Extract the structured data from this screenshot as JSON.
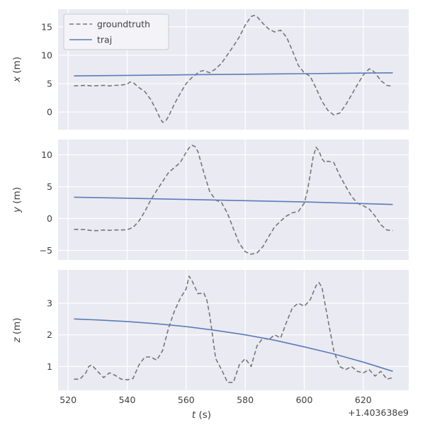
{
  "style": {
    "figure_bg": "#ffffff",
    "axes_bg": "#eaeaf2",
    "grid_color": "#ffffff",
    "text_color": "#404040",
    "groundtruth_color": "#767676",
    "traj_color": "#5b7cb8",
    "legend_bg": "#f3f3f8",
    "legend_border": "#cccccc"
  },
  "legend": {
    "entries": [
      {
        "label": "groundtruth",
        "color_key": "groundtruth_color",
        "dash": true
      },
      {
        "label": "traj",
        "color_key": "traj_color",
        "dash": false
      }
    ]
  },
  "xaxis": {
    "label_var": "t",
    "label_unit": "(s)",
    "ticks": [
      520,
      540,
      560,
      580,
      600,
      620
    ],
    "lim": [
      516.6,
      635.4
    ],
    "offset_text": "+1.403638e9"
  },
  "chart_data": [
    {
      "type": "line",
      "ylabel_var": "x",
      "ylabel_unit": "(m)",
      "yticks": [
        0,
        5,
        10,
        15
      ],
      "ylim": [
        -3.1,
        18.1
      ],
      "series": [
        {
          "name": "groundtruth",
          "color_key": "groundtruth_color",
          "dash": true,
          "points": [
            [
              522,
              4.6
            ],
            [
              524,
              4.65
            ],
            [
              526,
              4.7
            ],
            [
              528,
              4.6
            ],
            [
              530,
              4.65
            ],
            [
              532,
              4.7
            ],
            [
              534,
              4.6
            ],
            [
              536,
              4.7
            ],
            [
              538,
              4.75
            ],
            [
              540,
              4.9
            ],
            [
              541,
              5.3
            ],
            [
              542,
              5.2
            ],
            [
              544,
              4.3
            ],
            [
              546,
              3.6
            ],
            [
              548,
              2.2
            ],
            [
              550,
              0.2
            ],
            [
              551,
              -0.9
            ],
            [
              552,
              -1.8
            ],
            [
              553,
              -1.6
            ],
            [
              554,
              -0.8
            ],
            [
              556,
              1.4
            ],
            [
              558,
              3.3
            ],
            [
              560,
              5.0
            ],
            [
              562,
              6.1
            ],
            [
              564,
              6.9
            ],
            [
              565,
              7.2
            ],
            [
              566,
              7.3
            ],
            [
              568,
              6.9
            ],
            [
              570,
              7.6
            ],
            [
              572,
              8.6
            ],
            [
              574,
              10.1
            ],
            [
              576,
              11.6
            ],
            [
              578,
              13.2
            ],
            [
              580,
              15.3
            ],
            [
              582,
              16.8
            ],
            [
              583,
              17.0
            ],
            [
              584,
              16.8
            ],
            [
              586,
              15.6
            ],
            [
              588,
              14.6
            ],
            [
              590,
              14.1
            ],
            [
              592,
              14.4
            ],
            [
              594,
              13.2
            ],
            [
              596,
              10.8
            ],
            [
              598,
              8.2
            ],
            [
              600,
              6.9
            ],
            [
              602,
              6.3
            ],
            [
              604,
              4.2
            ],
            [
              606,
              1.9
            ],
            [
              608,
              0.3
            ],
            [
              610,
              -0.5
            ],
            [
              612,
              -0.2
            ],
            [
              614,
              1.2
            ],
            [
              616,
              3.0
            ],
            [
              618,
              4.8
            ],
            [
              620,
              6.5
            ],
            [
              622,
              7.6
            ],
            [
              623,
              7.4
            ],
            [
              624,
              6.9
            ],
            [
              626,
              5.5
            ],
            [
              628,
              4.7
            ],
            [
              630,
              4.5
            ]
          ]
        },
        {
          "name": "traj",
          "color_key": "traj_color",
          "dash": false,
          "points": [
            [
              522,
              6.35
            ],
            [
              540,
              6.45
            ],
            [
              560,
              6.55
            ],
            [
              580,
              6.65
            ],
            [
              600,
              6.75
            ],
            [
              620,
              6.85
            ],
            [
              630,
              6.9
            ]
          ]
        }
      ]
    },
    {
      "type": "line",
      "ylabel_var": "y",
      "ylabel_unit": "(m)",
      "yticks": [
        -5,
        0,
        5,
        10
      ],
      "ylim": [
        -6.5,
        12.4
      ],
      "series": [
        {
          "name": "groundtruth",
          "color_key": "groundtruth_color",
          "dash": true,
          "points": [
            [
              522,
              -1.7
            ],
            [
              524,
              -1.7
            ],
            [
              526,
              -1.75
            ],
            [
              528,
              -1.9
            ],
            [
              530,
              -1.9
            ],
            [
              532,
              -1.8
            ],
            [
              534,
              -1.85
            ],
            [
              536,
              -1.8
            ],
            [
              538,
              -1.8
            ],
            [
              540,
              -1.75
            ],
            [
              542,
              -1.4
            ],
            [
              544,
              -0.4
            ],
            [
              546,
              1.1
            ],
            [
              548,
              2.9
            ],
            [
              550,
              4.4
            ],
            [
              552,
              5.8
            ],
            [
              554,
              7.2
            ],
            [
              556,
              8.0
            ],
            [
              558,
              8.8
            ],
            [
              560,
              10.4
            ],
            [
              561,
              11.1
            ],
            [
              562,
              11.5
            ],
            [
              563,
              11.3
            ],
            [
              564,
              10.5
            ],
            [
              566,
              7.2
            ],
            [
              568,
              4.2
            ],
            [
              570,
              2.9
            ],
            [
              572,
              2.5
            ],
            [
              574,
              0.8
            ],
            [
              576,
              -1.6
            ],
            [
              578,
              -3.9
            ],
            [
              580,
              -5.2
            ],
            [
              582,
              -5.6
            ],
            [
              584,
              -5.4
            ],
            [
              586,
              -4.4
            ],
            [
              588,
              -2.8
            ],
            [
              590,
              -1.3
            ],
            [
              592,
              -0.4
            ],
            [
              594,
              0.4
            ],
            [
              596,
              0.9
            ],
            [
              598,
              1.1
            ],
            [
              600,
              2.4
            ],
            [
              601,
              4.2
            ],
            [
              602,
              6.8
            ],
            [
              603,
              9.6
            ],
            [
              604,
              11.2
            ],
            [
              605,
              10.6
            ],
            [
              606,
              9.4
            ],
            [
              607,
              8.8
            ],
            [
              608,
              9.0
            ],
            [
              610,
              8.8
            ],
            [
              612,
              6.8
            ],
            [
              614,
              5.1
            ],
            [
              616,
              3.5
            ],
            [
              618,
              2.4
            ],
            [
              620,
              2.0
            ],
            [
              622,
              1.5
            ],
            [
              624,
              0.4
            ],
            [
              626,
              -1.0
            ],
            [
              628,
              -1.8
            ],
            [
              630,
              -1.9
            ]
          ]
        },
        {
          "name": "traj",
          "color_key": "traj_color",
          "dash": false,
          "points": [
            [
              522,
              3.35
            ],
            [
              540,
              3.2
            ],
            [
              560,
              3.0
            ],
            [
              580,
              2.8
            ],
            [
              600,
              2.6
            ],
            [
              620,
              2.35
            ],
            [
              630,
              2.2
            ]
          ]
        }
      ]
    },
    {
      "type": "line",
      "ylabel_var": "z",
      "ylabel_unit": "(m)",
      "yticks": [
        1,
        2,
        3
      ],
      "ylim": [
        0.25,
        4.05
      ],
      "series": [
        {
          "name": "groundtruth",
          "color_key": "groundtruth_color",
          "dash": true,
          "points": [
            [
              522,
              0.6
            ],
            [
              524,
              0.6
            ],
            [
              526,
              0.8
            ],
            [
              527,
              1.0
            ],
            [
              528,
              1.05
            ],
            [
              530,
              0.85
            ],
            [
              532,
              0.65
            ],
            [
              534,
              0.8
            ],
            [
              536,
              0.72
            ],
            [
              538,
              0.6
            ],
            [
              540,
              0.58
            ],
            [
              542,
              0.62
            ],
            [
              544,
              1.05
            ],
            [
              546,
              1.3
            ],
            [
              548,
              1.3
            ],
            [
              550,
              1.2
            ],
            [
              552,
              1.5
            ],
            [
              554,
              2.2
            ],
            [
              556,
              2.75
            ],
            [
              558,
              3.15
            ],
            [
              560,
              3.45
            ],
            [
              561,
              3.85
            ],
            [
              562,
              3.7
            ],
            [
              564,
              3.3
            ],
            [
              566,
              3.32
            ],
            [
              567,
              3.1
            ],
            [
              568,
              2.6
            ],
            [
              570,
              1.25
            ],
            [
              572,
              0.9
            ],
            [
              574,
              0.5
            ],
            [
              576,
              0.5
            ],
            [
              578,
              1.05
            ],
            [
              580,
              1.25
            ],
            [
              582,
              1.0
            ],
            [
              584,
              1.65
            ],
            [
              586,
              1.9
            ],
            [
              588,
              1.85
            ],
            [
              590,
              2.0
            ],
            [
              592,
              1.9
            ],
            [
              594,
              2.4
            ],
            [
              596,
              2.85
            ],
            [
              598,
              3.0
            ],
            [
              600,
              2.9
            ],
            [
              602,
              3.1
            ],
            [
              604,
              3.55
            ],
            [
              605,
              3.65
            ],
            [
              606,
              3.5
            ],
            [
              608,
              2.5
            ],
            [
              610,
              1.5
            ],
            [
              612,
              1.0
            ],
            [
              614,
              0.9
            ],
            [
              616,
              1.0
            ],
            [
              618,
              0.85
            ],
            [
              620,
              0.8
            ],
            [
              622,
              0.9
            ],
            [
              624,
              0.7
            ],
            [
              626,
              0.85
            ],
            [
              628,
              0.6
            ],
            [
              630,
              0.65
            ]
          ]
        },
        {
          "name": "traj",
          "color_key": "traj_color",
          "dash": false,
          "points": [
            [
              522,
              2.5
            ],
            [
              530,
              2.47
            ],
            [
              540,
              2.42
            ],
            [
              550,
              2.35
            ],
            [
              560,
              2.26
            ],
            [
              570,
              2.14
            ],
            [
              580,
              2.0
            ],
            [
              590,
              1.83
            ],
            [
              600,
              1.62
            ],
            [
              610,
              1.4
            ],
            [
              620,
              1.14
            ],
            [
              630,
              0.85
            ]
          ]
        }
      ]
    }
  ]
}
